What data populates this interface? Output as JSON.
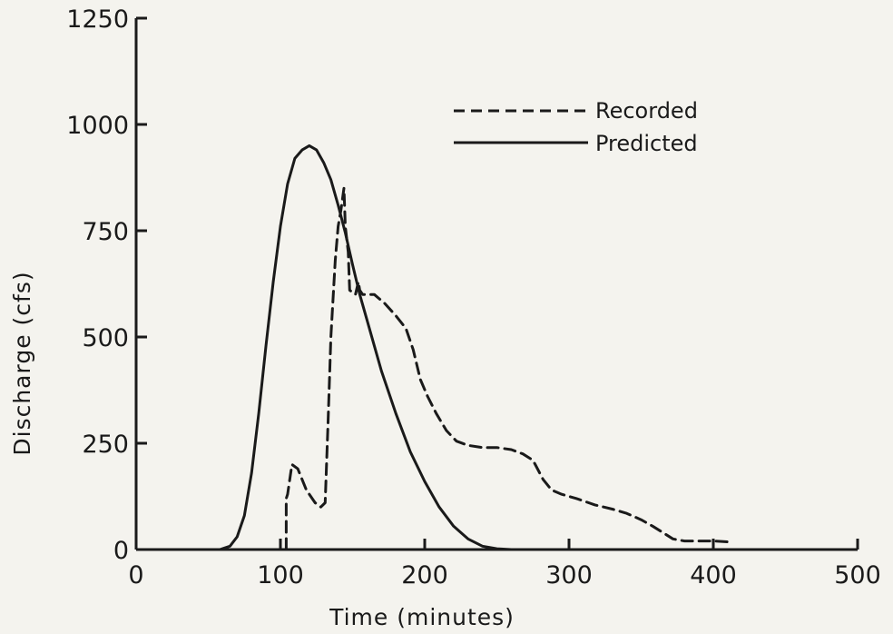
{
  "chart_data": {
    "type": "line",
    "xlabel": "Time (minutes)",
    "ylabel": "Discharge (cfs)",
    "xlim": [
      0,
      500
    ],
    "ylim": [
      0,
      1250
    ],
    "xticks": [
      0,
      100,
      200,
      300,
      400,
      500
    ],
    "yticks": [
      0,
      250,
      500,
      750,
      1000,
      1250
    ],
    "grid": false,
    "legend_position": "top-right",
    "series": [
      {
        "name": "Recorded",
        "style": "dashed",
        "color": "#1a1a1a",
        "x": [
          104,
          104,
          105,
          108,
          112,
          118,
          124,
          128,
          131,
          133,
          135,
          138,
          140,
          142,
          144,
          145,
          147,
          148,
          152,
          154,
          155,
          157,
          160,
          165,
          172,
          180,
          187,
          192,
          197,
          202,
          208,
          215,
          222,
          230,
          240,
          250,
          260,
          268,
          275,
          282,
          288,
          295,
          305,
          318,
          330,
          340,
          350,
          358,
          365,
          372,
          380,
          390,
          400,
          410
        ],
        "y": [
          0,
          120,
          130,
          200,
          190,
          140,
          110,
          100,
          110,
          300,
          500,
          680,
          760,
          800,
          850,
          760,
          700,
          610,
          600,
          630,
          610,
          600,
          600,
          600,
          580,
          550,
          520,
          470,
          400,
          360,
          320,
          280,
          255,
          245,
          240,
          240,
          235,
          225,
          210,
          165,
          140,
          130,
          120,
          105,
          95,
          85,
          70,
          55,
          40,
          25,
          20,
          20,
          20,
          18
        ]
      },
      {
        "name": "Predicted",
        "style": "solid",
        "color": "#1a1a1a",
        "x": [
          58,
          65,
          70,
          75,
          80,
          85,
          90,
          95,
          100,
          105,
          110,
          115,
          120,
          125,
          130,
          135,
          140,
          145,
          150,
          155,
          160,
          170,
          180,
          190,
          200,
          210,
          220,
          230,
          240,
          250,
          260
        ],
        "y": [
          0,
          8,
          30,
          80,
          180,
          320,
          480,
          630,
          760,
          860,
          920,
          940,
          950,
          940,
          910,
          870,
          810,
          745,
          670,
          600,
          540,
          420,
          320,
          230,
          160,
          100,
          55,
          25,
          8,
          2,
          0
        ]
      }
    ]
  }
}
